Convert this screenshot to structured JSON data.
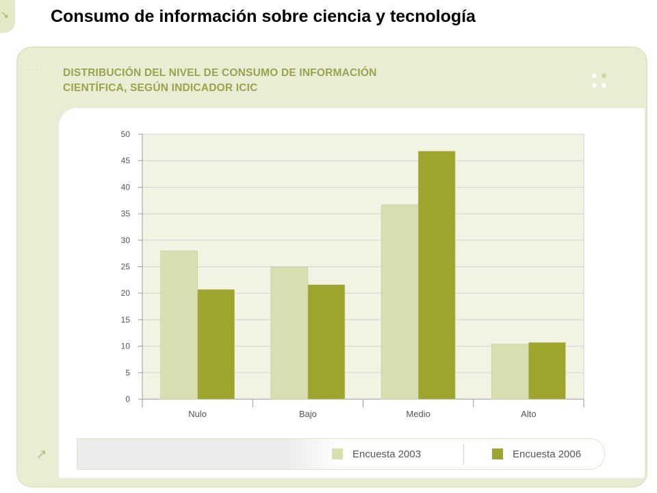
{
  "slide_title": "Consumo de información sobre ciencia y tecnología",
  "colors": {
    "panel_bg": "#e9edd3",
    "accent": "#9ba24c",
    "series_2003": "#d9deb1",
    "series_2006": "#9ea42c"
  },
  "icons": {
    "corner": "corner-arrow-icon",
    "legend_arrow": "diagonal-arrow-icon"
  },
  "chart_data": {
    "type": "bar",
    "title": "DISTRIBUCIÓN DEL NIVEL DE CONSUMO DE INFORMACIÓN CIENTÍFICA, SEGÚN INDICADOR ICIC",
    "title_lines": [
      "DISTRIBUCIÓN DEL NIVEL DE CONSUMO DE INFORMACIÓN",
      "CIENTÍFICA, SEGÚN INDICADOR ICIC"
    ],
    "categories": [
      "Nulo",
      "Bajo",
      "Medio",
      "Alto"
    ],
    "series": [
      {
        "name": "Encuesta 2003",
        "color": "#d9deb1",
        "values": [
          28,
          24.9,
          36.7,
          10.4
        ]
      },
      {
        "name": "Encuesta 2006",
        "color": "#9ea42c",
        "values": [
          20.7,
          21.6,
          46.8,
          10.7
        ]
      }
    ],
    "ylim": [
      0,
      50
    ],
    "yticks": [
      0,
      5,
      10,
      15,
      20,
      25,
      30,
      35,
      40,
      45,
      50
    ],
    "xlabel": "",
    "ylabel": "",
    "grid": true,
    "legend_position": "bottom-right"
  }
}
